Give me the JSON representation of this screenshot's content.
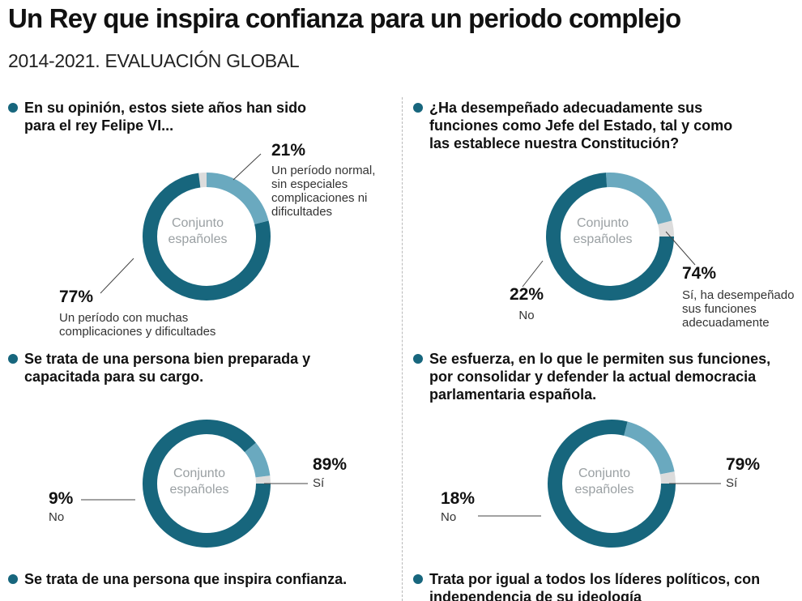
{
  "title": "Un Rey que inspira confianza para un periodo complejo",
  "subtitle": "2014-2021. EVALUACIÓN GLOBAL",
  "colors": {
    "dark": "#17667d",
    "light": "#6aa9bf",
    "grey": "#dcdcdc"
  },
  "chart_data": [
    {
      "type": "pie",
      "question": "En su opinión, estos siete años han sido para el rey Felipe VI...",
      "center_label": "Conjunto españoles",
      "slices": [
        {
          "value": 21,
          "pct_label": "21%",
          "desc": "Un período normal, sin especiales complicaciones ni dificultades",
          "color": "light"
        },
        {
          "value": 77,
          "pct_label": "77%",
          "desc": "Un período con muchas complicaciones y dificultades",
          "color": "dark"
        },
        {
          "value": 2,
          "color": "grey"
        }
      ]
    },
    {
      "type": "pie",
      "question": "¿Ha desempeñado adecuadamente sus funciones como Jefe del Estado, tal y como las establece nuestra Constitución?",
      "center_label": "Conjunto españoles",
      "slices": [
        {
          "value": 74,
          "pct_label": "74%",
          "desc": "Sí, ha desempeñado sus funciones adecuadamente",
          "color": "dark"
        },
        {
          "value": 22,
          "pct_label": "22%",
          "desc": "No",
          "color": "light"
        },
        {
          "value": 4,
          "color": "grey"
        }
      ]
    },
    {
      "type": "pie",
      "question": "Se trata de una persona bien preparada y capacitada para su cargo.",
      "center_label": "Conjunto españoles",
      "slices": [
        {
          "value": 89,
          "pct_label": "89%",
          "desc": "Sí",
          "color": "dark"
        },
        {
          "value": 9,
          "pct_label": "9%",
          "desc": "No",
          "color": "light"
        },
        {
          "value": 2,
          "color": "grey"
        }
      ]
    },
    {
      "type": "pie",
      "question": "Se esfuerza, en lo que le permiten sus funciones, por consolidar y defender la actual democracia parlamentaria española.",
      "center_label": "Conjunto españoles",
      "slices": [
        {
          "value": 79,
          "pct_label": "79%",
          "desc": "Sí",
          "color": "dark"
        },
        {
          "value": 18,
          "pct_label": "18%",
          "desc": "No",
          "color": "light"
        },
        {
          "value": 3,
          "color": "grey"
        }
      ]
    },
    {
      "type": "pie",
      "question": "Se trata de una persona que inspira confianza."
    },
    {
      "type": "pie",
      "question": "Trata por igual a todos los líderes políticos, con independencia de su ideología"
    }
  ]
}
